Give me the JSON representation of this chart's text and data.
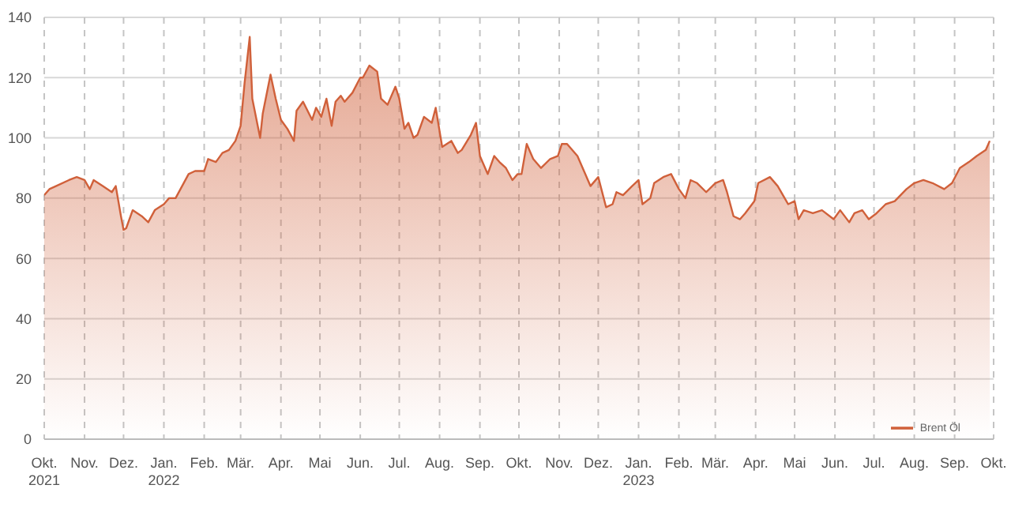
{
  "chart_data": {
    "type": "area",
    "x": [
      "2021-10-01",
      "2021-10-05",
      "2021-10-10",
      "2021-10-20",
      "2021-10-26",
      "2021-11-01",
      "2021-11-05",
      "2021-11-08",
      "2021-11-15",
      "2021-11-22",
      "2021-11-25",
      "2021-11-29",
      "2021-12-01",
      "2021-12-03",
      "2021-12-08",
      "2021-12-15",
      "2021-12-20",
      "2021-12-25",
      "2022-01-01",
      "2022-01-05",
      "2022-01-10",
      "2022-01-15",
      "2022-01-20",
      "2022-01-25",
      "2022-02-01",
      "2022-02-04",
      "2022-02-10",
      "2022-02-15",
      "2022-02-20",
      "2022-02-25",
      "2022-03-01",
      "2022-03-04",
      "2022-03-08",
      "2022-03-10",
      "2022-03-16",
      "2022-03-18",
      "2022-03-24",
      "2022-03-28",
      "2022-04-01",
      "2022-04-06",
      "2022-04-11",
      "2022-04-13",
      "2022-04-18",
      "2022-04-25",
      "2022-04-28",
      "2022-05-02",
      "2022-05-06",
      "2022-05-10",
      "2022-05-13",
      "2022-05-17",
      "2022-05-20",
      "2022-05-26",
      "2022-06-01",
      "2022-06-03",
      "2022-06-08",
      "2022-06-14",
      "2022-06-17",
      "2022-06-22",
      "2022-06-28",
      "2022-07-01",
      "2022-07-05",
      "2022-07-08",
      "2022-07-12",
      "2022-07-15",
      "2022-07-20",
      "2022-07-26",
      "2022-07-29",
      "2022-08-03",
      "2022-08-10",
      "2022-08-15",
      "2022-08-18",
      "2022-08-25",
      "2022-08-29",
      "2022-09-01",
      "2022-09-07",
      "2022-09-12",
      "2022-09-16",
      "2022-09-21",
      "2022-09-26",
      "2022-09-30",
      "2022-10-03",
      "2022-10-07",
      "2022-10-12",
      "2022-10-18",
      "2022-10-25",
      "2022-10-31",
      "2022-11-03",
      "2022-11-07",
      "2022-11-15",
      "2022-11-21",
      "2022-11-25",
      "2022-12-01",
      "2022-12-07",
      "2022-12-12",
      "2022-12-15",
      "2022-12-20",
      "2022-12-27",
      "2023-01-01",
      "2023-01-04",
      "2023-01-10",
      "2023-01-13",
      "2023-01-20",
      "2023-01-26",
      "2023-02-01",
      "2023-02-06",
      "2023-02-10",
      "2023-02-15",
      "2023-02-22",
      "2023-03-01",
      "2023-03-07",
      "2023-03-10",
      "2023-03-15",
      "2023-03-20",
      "2023-03-24",
      "2023-03-31",
      "2023-04-03",
      "2023-04-12",
      "2023-04-18",
      "2023-04-26",
      "2023-05-01",
      "2023-05-04",
      "2023-05-08",
      "2023-05-15",
      "2023-05-22",
      "2023-05-31",
      "2023-06-05",
      "2023-06-12",
      "2023-06-16",
      "2023-06-22",
      "2023-06-27",
      "2023-07-03",
      "2023-07-10",
      "2023-07-17",
      "2023-07-26",
      "2023-08-01",
      "2023-08-08",
      "2023-08-15",
      "2023-08-24",
      "2023-08-30",
      "2023-09-05",
      "2023-09-12",
      "2023-09-18",
      "2023-09-25",
      "2023-09-28"
    ],
    "series": [
      {
        "name": "Brent Öl",
        "color": "#d0603a",
        "values": [
          81,
          83,
          84,
          86,
          87,
          86,
          83,
          86,
          84,
          82,
          84,
          74,
          69.5,
          70,
          76,
          74,
          72,
          76,
          78,
          80,
          80,
          84,
          88,
          89,
          89,
          93,
          92,
          95,
          96,
          99,
          104,
          118,
          133.5,
          113,
          100,
          108,
          121,
          113,
          106,
          103,
          99,
          109,
          112,
          106,
          110,
          107,
          113,
          104,
          112,
          114,
          112,
          115,
          120,
          120,
          124,
          122,
          113,
          111,
          117,
          113,
          103,
          105,
          100,
          101,
          107,
          105,
          110,
          97,
          99,
          95,
          96,
          101,
          105,
          94,
          88,
          94,
          92,
          90,
          86,
          88,
          88,
          98,
          93,
          90,
          93,
          94,
          98,
          98,
          94,
          88,
          84,
          87,
          77,
          78,
          82,
          81,
          84,
          86,
          78,
          80,
          85,
          87,
          88,
          83,
          80,
          86,
          85,
          82,
          85,
          86,
          82,
          74,
          73,
          75,
          79,
          85,
          87,
          84,
          78,
          79,
          73,
          76,
          75,
          76,
          73,
          76,
          72,
          75,
          76,
          73,
          75,
          78,
          79,
          83,
          85,
          86,
          85,
          83,
          85,
          90,
          92,
          94,
          96,
          99
        ]
      }
    ],
    "xlim": [
      "2021-10-01",
      "2023-10-01"
    ],
    "xticks": [
      {
        "value": "2021-10-01",
        "label": "Okt.\n2021"
      },
      {
        "value": "2021-11-01",
        "label": "Nov."
      },
      {
        "value": "2021-12-01",
        "label": "Dez."
      },
      {
        "value": "2022-01-01",
        "label": "Jan.\n2022"
      },
      {
        "value": "2022-02-01",
        "label": "Feb."
      },
      {
        "value": "2022-03-01",
        "label": "Mär."
      },
      {
        "value": "2022-04-01",
        "label": "Apr."
      },
      {
        "value": "2022-05-01",
        "label": "Mai"
      },
      {
        "value": "2022-06-01",
        "label": "Jun."
      },
      {
        "value": "2022-07-01",
        "label": "Jul."
      },
      {
        "value": "2022-08-01",
        "label": "Aug."
      },
      {
        "value": "2022-09-01",
        "label": "Sep."
      },
      {
        "value": "2022-10-01",
        "label": "Okt."
      },
      {
        "value": "2022-11-01",
        "label": "Nov."
      },
      {
        "value": "2022-12-01",
        "label": "Dez."
      },
      {
        "value": "2023-01-01",
        "label": "Jan.\n2023"
      },
      {
        "value": "2023-02-01",
        "label": "Feb."
      },
      {
        "value": "2023-03-01",
        "label": "Mär."
      },
      {
        "value": "2023-04-01",
        "label": "Apr."
      },
      {
        "value": "2023-05-01",
        "label": "Mai"
      },
      {
        "value": "2023-06-01",
        "label": "Jun."
      },
      {
        "value": "2023-07-01",
        "label": "Jul."
      },
      {
        "value": "2023-08-01",
        "label": "Aug."
      },
      {
        "value": "2023-09-01",
        "label": "Sep."
      },
      {
        "value": "2023-10-01",
        "label": "Okt."
      }
    ],
    "ylim": [
      0,
      140
    ],
    "yticks": [
      0,
      20,
      40,
      60,
      80,
      100,
      120,
      140
    ],
    "grid": true,
    "legend": "bottom right"
  }
}
